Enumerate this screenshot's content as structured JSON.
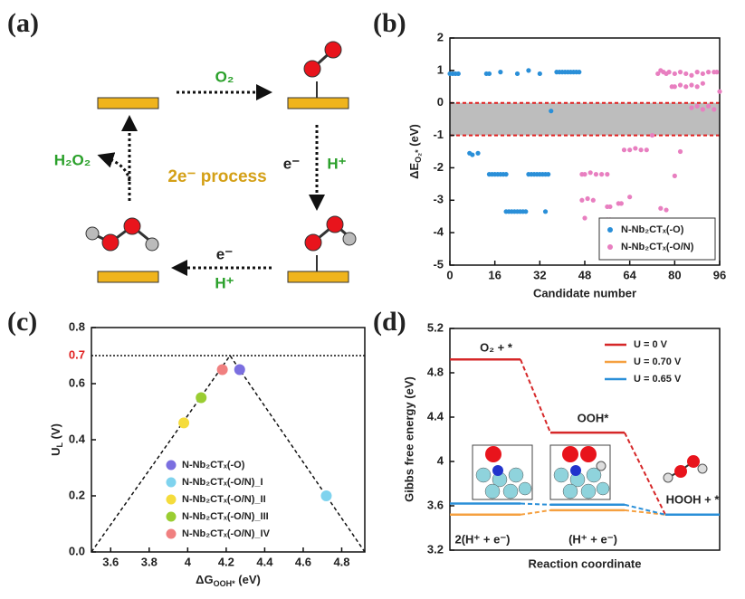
{
  "panel_labels": [
    "(a)",
    "(b)",
    "(c)",
    "(d)"
  ],
  "diagram": {
    "labels": [
      "O₂",
      "e⁻",
      "H⁺",
      "H₂O₂",
      "2e⁻ process",
      "e⁻",
      "H⁺"
    ]
  },
  "chart_data": [
    {
      "type": "scatter",
      "xlabel": "Candidate number",
      "ylabel": [
        "ΔE",
        "O₂*",
        " (eV)"
      ],
      "xlim": [
        0,
        96
      ],
      "xticks": [
        0,
        16,
        32,
        48,
        64,
        80,
        96
      ],
      "ylim": [
        -5,
        2
      ],
      "yticks": [
        -5,
        -4,
        -3,
        -2,
        -1,
        0,
        1,
        2
      ],
      "band": {
        "range": [
          -1,
          0
        ],
        "color": "#bdbdbd",
        "line_color": "#e02020"
      },
      "legend": "lower right",
      "series": [
        {
          "name": "N-Nb₂CTₓ(-O)",
          "color": "#2a8fd8",
          "x": [
            0,
            1,
            2,
            3,
            13,
            14,
            18,
            24,
            28,
            32,
            38,
            39,
            40,
            41,
            42,
            43,
            44,
            45,
            46,
            36,
            7,
            8,
            10,
            14,
            15,
            16,
            17,
            18,
            19,
            20,
            28,
            29,
            30,
            31,
            32,
            33,
            34,
            35,
            20,
            21,
            22,
            23,
            24,
            25,
            26,
            27,
            34
          ],
          "values": [
            0.9,
            0.9,
            0.9,
            0.9,
            0.9,
            0.9,
            0.95,
            0.9,
            1.0,
            0.9,
            0.95,
            0.95,
            0.95,
            0.95,
            0.95,
            0.95,
            0.95,
            0.95,
            0.95,
            -0.25,
            -1.55,
            -1.6,
            -1.55,
            -2.2,
            -2.2,
            -2.2,
            -2.2,
            -2.2,
            -2.2,
            -2.2,
            -2.2,
            -2.2,
            -2.2,
            -2.2,
            -2.2,
            -2.2,
            -2.2,
            -2.2,
            -3.35,
            -3.35,
            -3.35,
            -3.35,
            -3.35,
            -3.35,
            -3.35,
            -3.35,
            -3.35
          ]
        },
        {
          "name": "N-Nb₂CTₓ(-O/N)",
          "color": "#e87fc0",
          "x": [
            74,
            75,
            76,
            77,
            78,
            80,
            82,
            84,
            86,
            88,
            90,
            92,
            94,
            95,
            79,
            80,
            82,
            84,
            86,
            88,
            90,
            86,
            88,
            90,
            92,
            94,
            96,
            62,
            64,
            66,
            68,
            70,
            72,
            47,
            48,
            50,
            52,
            54,
            56,
            80,
            47,
            49,
            51,
            56,
            57,
            60,
            61,
            64,
            48,
            56,
            57,
            75,
            77,
            82
          ],
          "values": [
            0.9,
            1.0,
            0.95,
            0.9,
            0.95,
            0.9,
            0.95,
            0.9,
            0.85,
            0.95,
            0.9,
            0.95,
            0.95,
            0.95,
            0.5,
            0.5,
            0.55,
            0.5,
            0.55,
            0.5,
            0.6,
            -0.15,
            -0.1,
            -0.2,
            -0.1,
            -0.2,
            0.35,
            -1.45,
            -1.45,
            -1.4,
            -1.45,
            -1.45,
            -1.0,
            -2.2,
            -2.2,
            -2.15,
            -2.2,
            -2.2,
            -2.2,
            -2.25,
            -3.0,
            -2.95,
            -3.0,
            -3.2,
            -3.2,
            -3.1,
            -3.1,
            -2.9,
            -3.55,
            -3.6,
            -3.6,
            -3.25,
            -3.3,
            -1.5
          ]
        }
      ]
    },
    {
      "type": "scatter",
      "xlabel": [
        "ΔG",
        "OOH*",
        " (eV)"
      ],
      "ylabel": [
        "U",
        "L",
        " (V)"
      ],
      "xlim": [
        3.5,
        4.92
      ],
      "xticks": [
        3.6,
        3.8,
        4.0,
        4.2,
        4.4,
        4.6,
        4.8
      ],
      "ylim": [
        0,
        0.8
      ],
      "yticks": [
        {
          "value": 0,
          "label": "0.0"
        },
        0.2,
        0.4,
        0.6,
        0.8
      ],
      "reference": {
        "value": 0.7,
        "color": "#e02020"
      },
      "guide": {
        "x": [
          3.5,
          4.22,
          4.92
        ],
        "values": [
          0,
          0.7,
          0
        ]
      },
      "legend": "lower center",
      "series": [
        {
          "name": "N-Nb₂CTₓ(-O)",
          "color": "#7b6fe0",
          "x": [
            4.27
          ],
          "values": [
            0.65
          ]
        },
        {
          "name": "N-Nb₂CTₓ(-O/N)_I",
          "color": "#7fd3ee",
          "x": [
            4.72
          ],
          "values": [
            0.2
          ]
        },
        {
          "name": "N-Nb₂CTₓ(-O/N)_II",
          "color": "#f5dc3c",
          "x": [
            3.98
          ],
          "values": [
            0.46
          ]
        },
        {
          "name": "N-Nb₂CTₓ(-O/N)_III",
          "color": "#9acd32",
          "x": [
            4.07
          ],
          "values": [
            0.55
          ]
        },
        {
          "name": "N-Nb₂CTₓ(-O/N)_IV",
          "color": "#f08080",
          "x": [
            4.18
          ],
          "values": [
            0.65
          ]
        }
      ]
    },
    {
      "type": "energy",
      "xlabel": "Reaction coordinate",
      "ylabel": "Gibbs free energy (eV)",
      "categories": [
        null,
        null,
        null
      ],
      "ylim": [
        3.2,
        5.2
      ],
      "yticks": [
        3.2,
        3.6,
        4.0,
        4.4,
        4.8,
        5.2
      ],
      "annotations": [
        "O₂ + *",
        "OOH*",
        "HOOH + *",
        "2(H⁺ + e⁻)",
        "(H⁺ + e⁻)"
      ],
      "legend": "upper right",
      "series": [
        {
          "name": "U = 0 V",
          "color": "#d62728",
          "values": [
            4.92,
            4.26,
            3.52
          ]
        },
        {
          "name": "U = 0.70 V",
          "color": "#f5a040",
          "values": [
            3.52,
            3.56,
            3.52
          ]
        },
        {
          "name": "U = 0.65 V",
          "color": "#2a8fd8",
          "values": [
            3.62,
            3.61,
            3.52
          ]
        }
      ]
    }
  ]
}
